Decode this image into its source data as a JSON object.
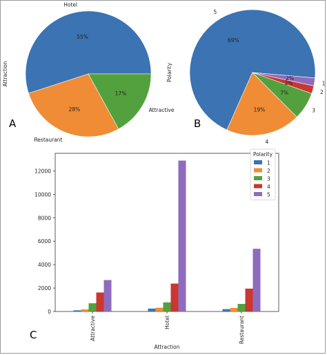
{
  "panel_labels": [
    "A",
    "B",
    "C"
  ],
  "colors": {
    "blue": "#3b73b3",
    "orange": "#ef8c35",
    "green": "#53a13e",
    "red": "#c93731",
    "purple": "#8f6bbd"
  },
  "chart_data": [
    {
      "type": "pie",
      "panel": "A",
      "ylabel": "Attraction",
      "slices": [
        {
          "label": "Hotel",
          "value": 55,
          "pct_label": "55%",
          "color": "#3b73b3"
        },
        {
          "label": "Restaurant",
          "value": 28,
          "pct_label": "28%",
          "color": "#ef8c35"
        },
        {
          "label": "Attractive",
          "value": 17,
          "pct_label": "17%",
          "color": "#53a13e"
        }
      ]
    },
    {
      "type": "pie",
      "panel": "B",
      "ylabel": "Polarity",
      "slices": [
        {
          "label": "5",
          "value": 69,
          "pct_label": "69%",
          "color": "#3b73b3"
        },
        {
          "label": "4",
          "value": 19,
          "pct_label": "19%",
          "color": "#ef8c35"
        },
        {
          "label": "3",
          "value": 7,
          "pct_label": "7%",
          "color": "#53a13e"
        },
        {
          "label": "2",
          "value": 2,
          "pct_label": "2%",
          "color": "#c93731"
        },
        {
          "label": "1",
          "value": 2,
          "pct_label": "2%",
          "color": "#8f6bbd"
        }
      ]
    },
    {
      "type": "bar",
      "panel": "C",
      "xlabel": "Attraction",
      "ylabel": "",
      "categories": [
        "Attractive",
        "Hotel",
        "Restaurant"
      ],
      "ylim": [
        0,
        13500
      ],
      "yticks": [
        0,
        2000,
        4000,
        6000,
        8000,
        10000,
        12000
      ],
      "legend": {
        "title": "Polarity",
        "position": "top-right"
      },
      "series": [
        {
          "name": "1",
          "color": "#3b73b3",
          "values": [
            100,
            250,
            200
          ]
        },
        {
          "name": "2",
          "color": "#ef8c35",
          "values": [
            180,
            320,
            300
          ]
        },
        {
          "name": "3",
          "color": "#53a13e",
          "values": [
            700,
            780,
            650
          ]
        },
        {
          "name": "4",
          "color": "#c93731",
          "values": [
            1620,
            2380,
            1950
          ]
        },
        {
          "name": "5",
          "color": "#8f6bbd",
          "values": [
            2680,
            12880,
            5350
          ]
        }
      ]
    }
  ]
}
